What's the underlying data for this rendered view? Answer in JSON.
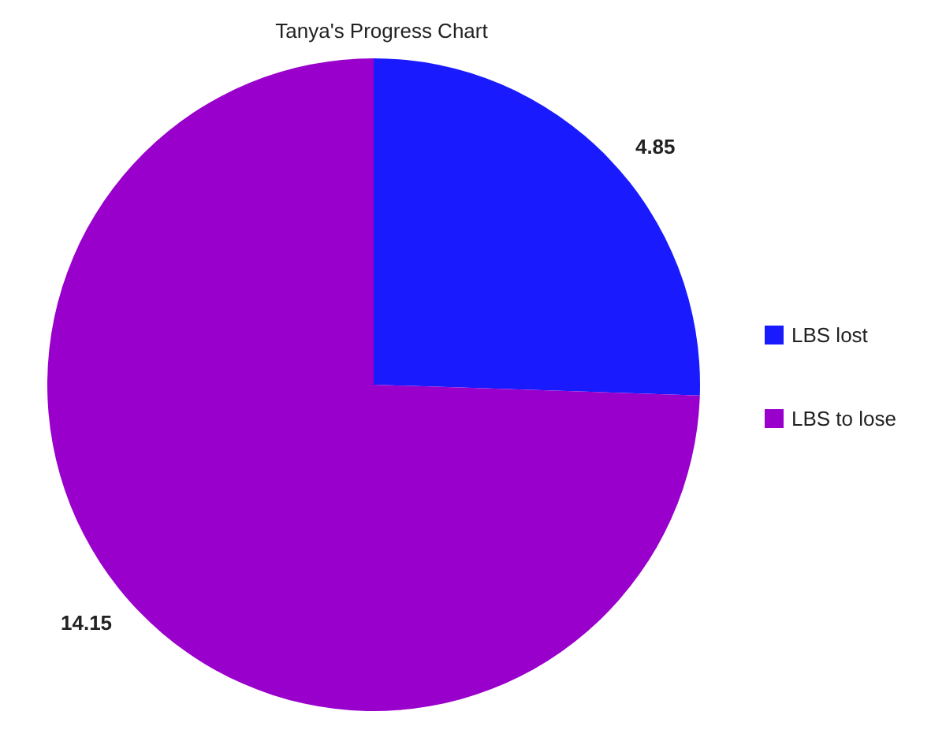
{
  "chart_data": {
    "type": "pie",
    "title": "Tanya's Progress Chart",
    "categories": [
      "LBS lost",
      "LBS to lose"
    ],
    "values": [
      4.85,
      14.15
    ],
    "colors": [
      "#1a1aff",
      "#9900cc"
    ],
    "data_labels": true,
    "legend": "right"
  }
}
